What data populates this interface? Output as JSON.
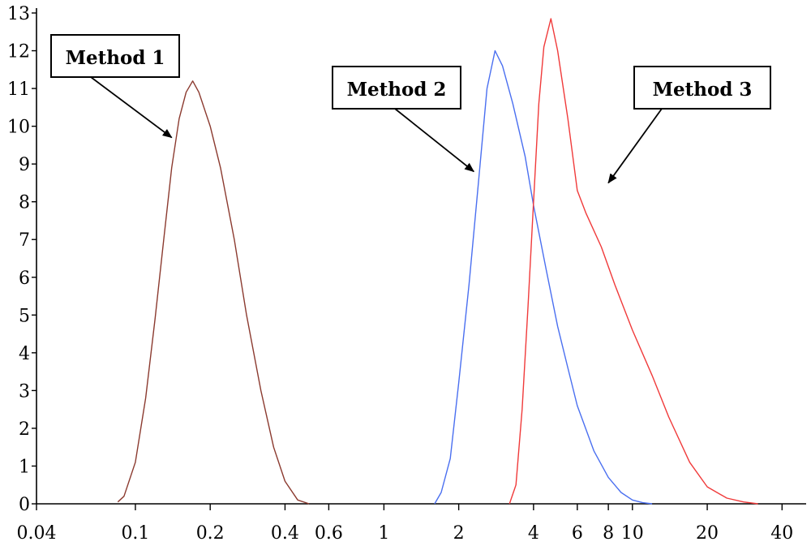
{
  "chart_data": {
    "type": "line",
    "title": "",
    "xlabel": "",
    "ylabel": "",
    "x_scale": "log",
    "xlim": [
      0.04,
      50
    ],
    "ylim": [
      0,
      13
    ],
    "x_ticks": [
      0.04,
      0.1,
      0.2,
      0.4,
      0.6,
      1,
      2,
      4,
      6,
      8,
      10,
      20,
      40
    ],
    "y_ticks": [
      0,
      1,
      2,
      3,
      4,
      5,
      6,
      7,
      8,
      9,
      10,
      11,
      12,
      13
    ],
    "grid": false,
    "legend": "none",
    "series": [
      {
        "color": "#8b3a2f",
        "x": [
          0.085,
          0.09,
          0.1,
          0.11,
          0.12,
          0.13,
          0.14,
          0.15,
          0.16,
          0.17,
          0.18,
          0.2,
          0.22,
          0.25,
          0.28,
          0.32,
          0.36,
          0.4,
          0.45,
          0.5
        ],
        "y": [
          0.05,
          0.2,
          1.1,
          2.8,
          4.9,
          7.0,
          8.9,
          10.2,
          10.9,
          11.2,
          10.9,
          10.0,
          8.9,
          7.0,
          5.0,
          3.0,
          1.5,
          0.6,
          0.1,
          0.0
        ]
      },
      {
        "color": "#4a6ff0",
        "x": [
          1.6,
          1.7,
          1.85,
          2.0,
          2.2,
          2.4,
          2.6,
          2.8,
          3.0,
          3.3,
          3.7,
          4.0,
          4.5,
          5.0,
          5.5,
          6.0,
          7.0,
          8.0,
          9.0,
          10.0,
          11.0,
          12.0
        ],
        "y": [
          0.0,
          0.3,
          1.2,
          3.2,
          5.8,
          8.5,
          11.0,
          12.0,
          11.6,
          10.6,
          9.2,
          7.9,
          6.2,
          4.7,
          3.6,
          2.6,
          1.4,
          0.7,
          0.3,
          0.1,
          0.03,
          0.0
        ]
      },
      {
        "color": "#f03a3a",
        "x": [
          3.2,
          3.4,
          3.6,
          3.8,
          4.0,
          4.2,
          4.4,
          4.7,
          5.0,
          5.5,
          6.0,
          6.5,
          7.5,
          8.5,
          10.0,
          12.0,
          14.0,
          17.0,
          20.0,
          24.0,
          28.0,
          32.0
        ],
        "y": [
          0.0,
          0.5,
          2.5,
          5.2,
          8.0,
          10.6,
          12.1,
          12.85,
          12.0,
          10.2,
          8.3,
          7.7,
          6.8,
          5.8,
          4.6,
          3.4,
          2.3,
          1.1,
          0.45,
          0.15,
          0.05,
          0.0
        ]
      }
    ],
    "annotations": [
      {
        "text": "Method 1",
        "target": [
          0.14,
          9.7
        ]
      },
      {
        "text": "Method 2",
        "target": [
          2.3,
          8.8
        ]
      },
      {
        "text": "Method 3",
        "target": [
          8.0,
          8.5
        ]
      }
    ]
  }
}
